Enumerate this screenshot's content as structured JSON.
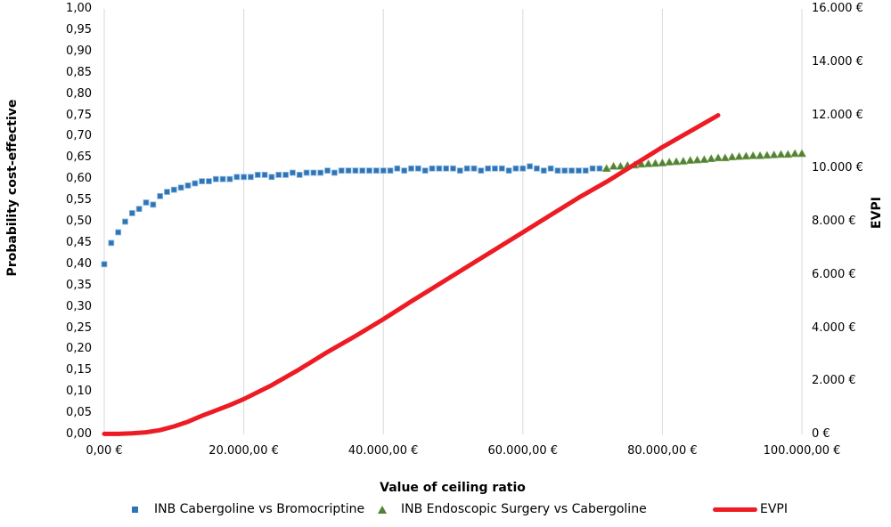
{
  "chart_data": {
    "type": "combo-scatter-line",
    "title": "",
    "background": "#FFFFFF",
    "grid_color": "#D9D9D9",
    "grid": "vertical-only",
    "legend_position": "bottom",
    "x_axis": {
      "label": "Value of ceiling ratio",
      "min": 0,
      "max": 100000,
      "step": 20000,
      "tick_values": [
        0,
        20000,
        40000,
        60000,
        80000,
        100000
      ],
      "tick_labels": [
        "0,00 €",
        "20.000,00 €",
        "40.000,00 €",
        "60.000,00 €",
        "80.000,00 €",
        "100.000,00 €"
      ]
    },
    "y_axis_left": {
      "label": "Probability cost-effective",
      "min": 0,
      "max": 1,
      "step": 0.05,
      "tick_labels": [
        "1,00",
        "0,95",
        "0,90",
        "0,85",
        "0,80",
        "0,75",
        "0,70",
        "0,65",
        "0,60",
        "0,55",
        "0,50",
        "0,45",
        "0,40",
        "0,35",
        "0,30",
        "0,25",
        "0,20",
        "0,15",
        "0,10",
        "0,05",
        "0,00"
      ]
    },
    "y_axis_right": {
      "label": "EVPI",
      "min": 0,
      "max": 16000,
      "step": 2000,
      "tick_labels": [
        "16.000 €",
        "14.000 €",
        "12.000 €",
        "10.000 €",
        "8.000 €",
        "6.000 €",
        "4.000 €",
        "2.000 €",
        "0 €"
      ]
    },
    "series": [
      {
        "name": "INB Cabergoline  vs Bromocriptine",
        "type": "scatter",
        "marker": "square",
        "color": "#2E75B6",
        "edge_color": "#8FB8E0",
        "axis": "left",
        "x_start": 0,
        "x_step": 1000,
        "y": [
          0.4,
          0.45,
          0.475,
          0.5,
          0.52,
          0.53,
          0.545,
          0.54,
          0.56,
          0.57,
          0.575,
          0.58,
          0.585,
          0.59,
          0.595,
          0.595,
          0.6,
          0.6,
          0.6,
          0.605,
          0.605,
          0.605,
          0.61,
          0.61,
          0.605,
          0.61,
          0.61,
          0.615,
          0.61,
          0.615,
          0.615,
          0.615,
          0.62,
          0.615,
          0.62,
          0.62,
          0.62,
          0.62,
          0.62,
          0.62,
          0.62,
          0.62,
          0.625,
          0.62,
          0.625,
          0.625,
          0.62,
          0.625,
          0.625,
          0.625,
          0.625,
          0.62,
          0.625,
          0.625,
          0.62,
          0.625,
          0.625,
          0.625,
          0.62,
          0.625,
          0.625,
          0.63,
          0.625,
          0.62,
          0.625,
          0.62,
          0.62,
          0.62,
          0.62,
          0.62,
          0.625,
          0.625
        ]
      },
      {
        "name": "INB Endoscopic Surgery vs Cabergoline",
        "type": "scatter",
        "marker": "triangle",
        "color": "#538135",
        "edge_color": "#86AE63",
        "axis": "left",
        "x_start": 72000,
        "x_step": 1000,
        "y": [
          0.625,
          0.63,
          0.63,
          0.632,
          0.633,
          0.635,
          0.636,
          0.637,
          0.638,
          0.64,
          0.641,
          0.642,
          0.644,
          0.645,
          0.646,
          0.648,
          0.65,
          0.65,
          0.652,
          0.653,
          0.654,
          0.655,
          0.655,
          0.656,
          0.657,
          0.658,
          0.658,
          0.66,
          0.66
        ]
      },
      {
        "name": "EVPI",
        "type": "line",
        "color": "#ED1C24",
        "line_width": 5,
        "axis": "right",
        "x": [
          0,
          2000,
          4000,
          6000,
          8000,
          10000,
          12000,
          14000,
          16000,
          18000,
          20000,
          24000,
          28000,
          32000,
          36000,
          40000,
          44000,
          48000,
          52000,
          56000,
          60000,
          64000,
          68000,
          72000,
          76000,
          80000,
          84000,
          88000
        ],
        "y": [
          20,
          20,
          40,
          80,
          160,
          300,
          480,
          700,
          900,
          1100,
          1330,
          1850,
          2450,
          3100,
          3700,
          4330,
          5000,
          5650,
          6300,
          6950,
          7600,
          8250,
          8900,
          9500,
          10150,
          10800,
          11400,
          12000
        ]
      }
    ]
  }
}
